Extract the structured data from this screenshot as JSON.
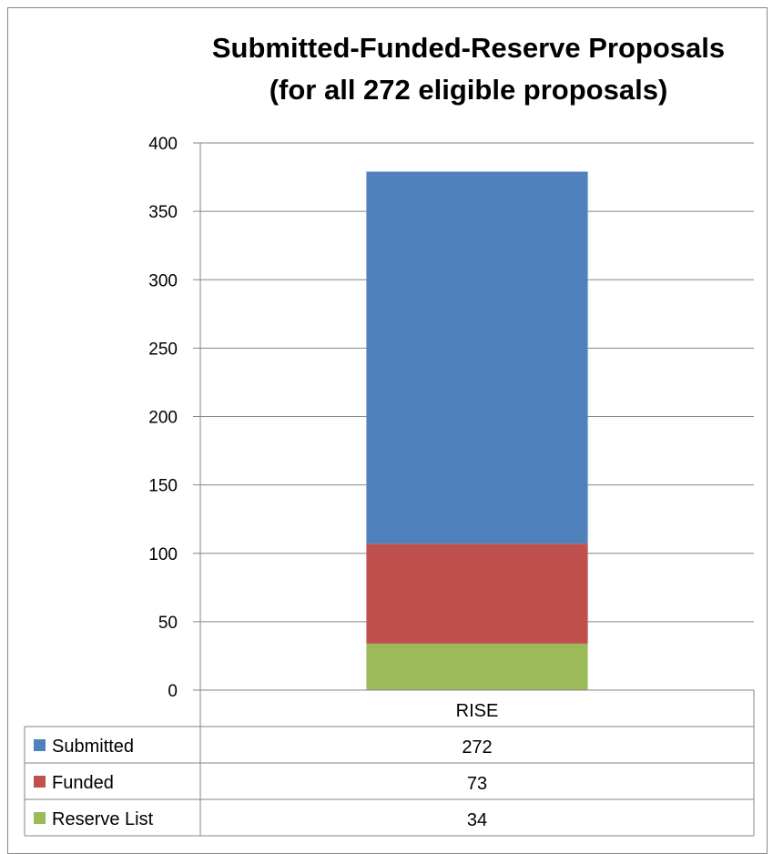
{
  "chart_data": {
    "type": "bar",
    "stacked": true,
    "title": "Submitted-Funded-Reserve Proposals",
    "subtitle": "(for all 272 eligible proposals)",
    "categories": [
      "RISE"
    ],
    "series": [
      {
        "name": "Submitted",
        "values": [
          272
        ],
        "color": "#4F81BD"
      },
      {
        "name": "Funded",
        "values": [
          73
        ],
        "color": "#C0504D"
      },
      {
        "name": "Reserve List",
        "values": [
          34
        ],
        "color": "#9BBB59"
      }
    ],
    "ylim": [
      0,
      400
    ],
    "yticks": [
      0,
      50,
      100,
      150,
      200,
      250,
      300,
      350,
      400
    ],
    "grid": true,
    "legend": "data-table",
    "xlabel": "",
    "ylabel": ""
  }
}
